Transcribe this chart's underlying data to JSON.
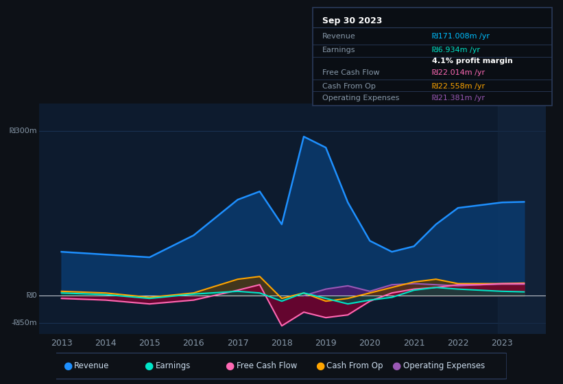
{
  "bg_color": "#0d1117",
  "plot_bg_color": "#0d1b2e",
  "title_box": {
    "date": "Sep 30 2023",
    "rows": [
      {
        "label": "Revenue",
        "value": "₪171.008m /yr",
        "value_color": "#00bfff"
      },
      {
        "label": "Earnings",
        "value": "₪6.934m /yr",
        "value_color": "#00e5c8"
      },
      {
        "label": "",
        "value": "4.1% profit margin",
        "value_color": "#ffffff"
      },
      {
        "label": "Free Cash Flow",
        "value": "₪22.014m /yr",
        "value_color": "#ff69b4"
      },
      {
        "label": "Cash From Op",
        "value": "₪22.558m /yr",
        "value_color": "#ffa500"
      },
      {
        "label": "Operating Expenses",
        "value": "₪21.381m /yr",
        "value_color": "#9b59b6"
      }
    ]
  },
  "years": [
    2013,
    2014,
    2015,
    2016,
    2017,
    2017.5,
    2018,
    2018.5,
    2019,
    2019.5,
    2020,
    2020.5,
    2021,
    2021.5,
    2022,
    2022.5,
    2023,
    2023.5
  ],
  "revenue": [
    80,
    75,
    70,
    110,
    175,
    190,
    130,
    290,
    270,
    170,
    100,
    80,
    90,
    130,
    160,
    165,
    170,
    171
  ],
  "earnings": [
    5,
    2,
    -5,
    3,
    8,
    5,
    -10,
    5,
    -5,
    -15,
    -8,
    -3,
    10,
    15,
    12,
    10,
    8,
    7
  ],
  "free_cash_flow": [
    -5,
    -8,
    -15,
    -8,
    10,
    20,
    -55,
    -30,
    -40,
    -35,
    -10,
    5,
    12,
    15,
    20,
    20,
    22,
    22
  ],
  "cash_from_op": [
    8,
    5,
    -3,
    5,
    30,
    35,
    -5,
    5,
    -10,
    -5,
    5,
    15,
    25,
    30,
    22,
    22,
    22,
    23
  ],
  "operating_expenses": [
    0,
    0,
    0,
    0,
    0,
    0,
    0,
    0,
    12,
    18,
    8,
    20,
    22,
    20,
    18,
    20,
    21,
    21
  ],
  "revenue_color": "#1e90ff",
  "revenue_fill": "#0a3a6e",
  "earnings_color": "#00e5c8",
  "earnings_fill": "#004d42",
  "free_cash_flow_color": "#ff69b4",
  "free_cash_flow_fill": "#7b0030",
  "cash_from_op_color": "#ffa500",
  "cash_from_op_fill": "#5a3700",
  "op_expenses_color": "#9b59b6",
  "op_expenses_fill": "#4a1a6e",
  "grid_color": "#1e3a5f",
  "tick_color": "#8899aa",
  "legend_bg": "#0d1117",
  "legend_border": "#2a3a5a",
  "ylim": [
    -70,
    350
  ],
  "yticks": [
    -50,
    0,
    300
  ],
  "ytick_labels": [
    "-₪50m",
    "₪0",
    "₪300m"
  ],
  "xlim": [
    2012.5,
    2024.0
  ],
  "xticks": [
    2013,
    2014,
    2015,
    2016,
    2017,
    2018,
    2019,
    2020,
    2021,
    2022,
    2023
  ]
}
